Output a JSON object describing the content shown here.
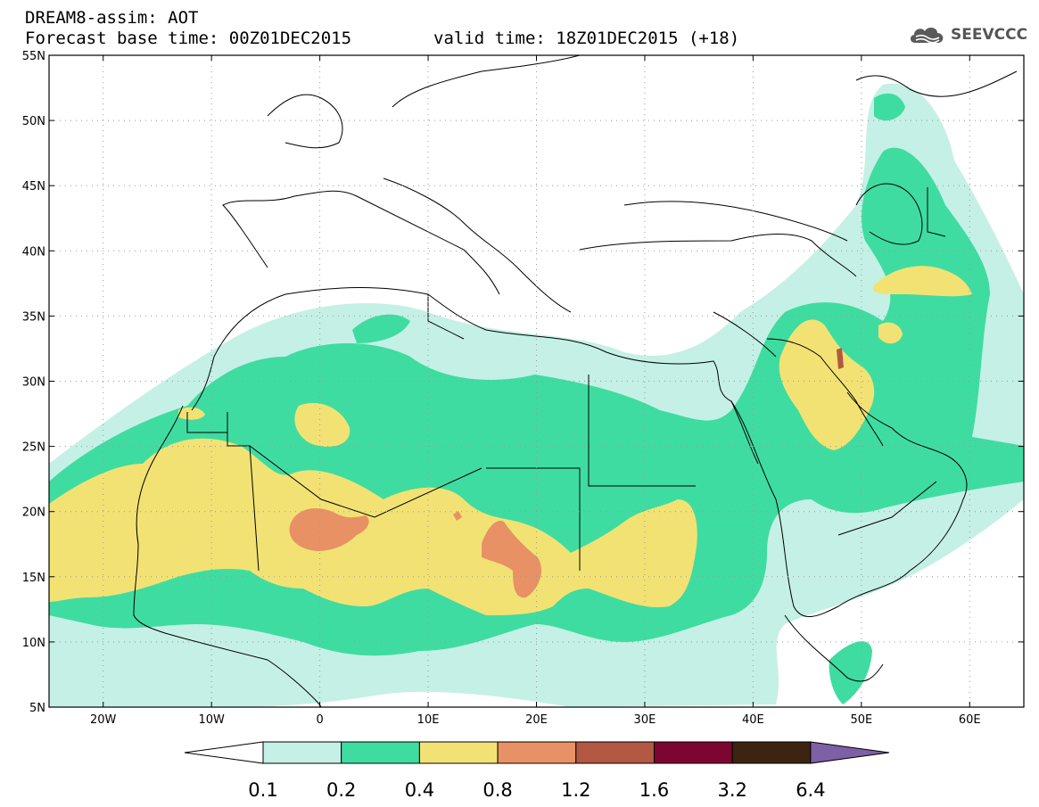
{
  "header": {
    "model_line": "DREAM8-assim: AOT",
    "base_time": "Forecast base time: 00Z01DEC2015",
    "valid_time": "valid time: 18Z01DEC2015 (+18)"
  },
  "logo": {
    "text": "SEEVCCC",
    "icon": "cloud-icon"
  },
  "map": {
    "lon_range": [
      -25,
      65
    ],
    "lat_range": [
      5,
      55
    ],
    "x_ticks": [
      {
        "lon": -20,
        "label": "20W"
      },
      {
        "lon": -10,
        "label": "10W"
      },
      {
        "lon": 0,
        "label": "0"
      },
      {
        "lon": 10,
        "label": "10E"
      },
      {
        "lon": 20,
        "label": "20E"
      },
      {
        "lon": 30,
        "label": "30E"
      },
      {
        "lon": 40,
        "label": "40E"
      },
      {
        "lon": 50,
        "label": "50E"
      },
      {
        "lon": 60,
        "label": "60E"
      }
    ],
    "y_ticks": [
      {
        "lat": 55,
        "label": "55N"
      },
      {
        "lat": 50,
        "label": "50N"
      },
      {
        "lat": 45,
        "label": "45N"
      },
      {
        "lat": 40,
        "label": "40N"
      },
      {
        "lat": 35,
        "label": "35N"
      },
      {
        "lat": 30,
        "label": "30N"
      },
      {
        "lat": 25,
        "label": "25N"
      },
      {
        "lat": 20,
        "label": "20N"
      },
      {
        "lat": 15,
        "label": "15N"
      },
      {
        "lat": 10,
        "label": "10N"
      },
      {
        "lat": 5,
        "label": "5N"
      }
    ],
    "grid": "dotted"
  },
  "colorbar": {
    "colors": [
      "#ffffff",
      "#c5f0e5",
      "#3fdca1",
      "#f2e274",
      "#e89165",
      "#b25843",
      "#7d0631",
      "#3d2412",
      "#7e60a6"
    ],
    "labels": [
      "0.1",
      "0.2",
      "0.4",
      "0.8",
      "1.2",
      "1.6",
      "3.2",
      "6.4"
    ]
  }
}
